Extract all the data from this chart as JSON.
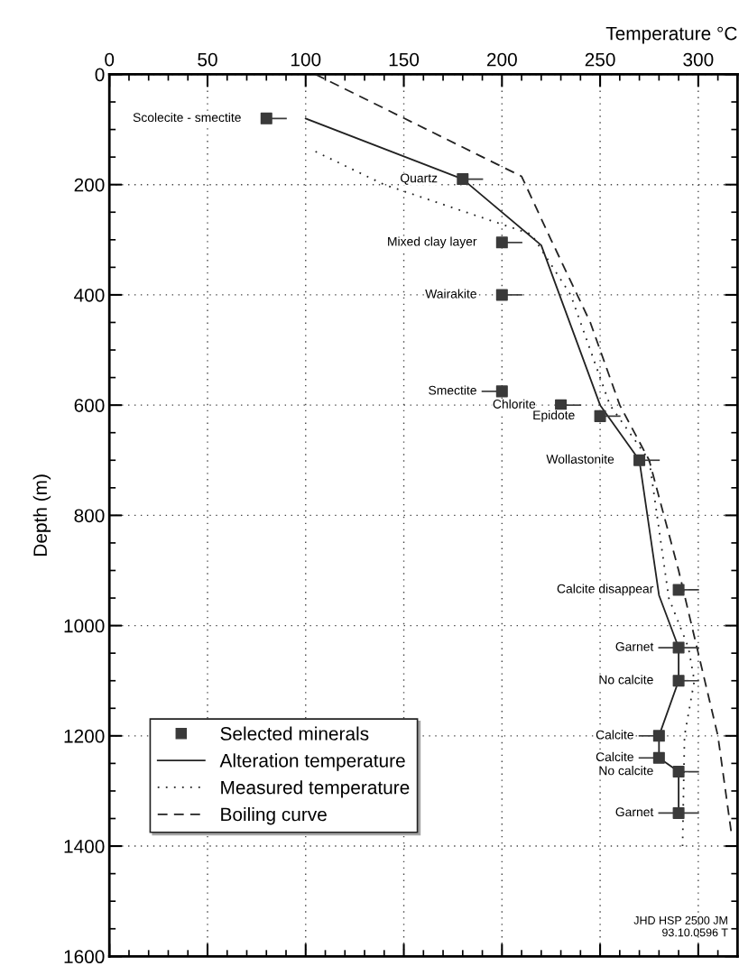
{
  "chart_data": {
    "type": "line",
    "xlabel": "Temperature °C",
    "ylabel": "Depth (m)",
    "xlim": [
      0,
      320
    ],
    "xticks": [
      0,
      50,
      100,
      150,
      200,
      250,
      300
    ],
    "ylim": [
      1600,
      0
    ],
    "yticks": [
      0,
      200,
      400,
      600,
      800,
      1000,
      1200,
      1400,
      1600
    ],
    "grid": true,
    "legend": "bottom left",
    "series": [
      {
        "name": "Selected minerals",
        "type": "scatter",
        "marker": "square",
        "color": "#3a3a3a",
        "x": [
          80,
          180,
          200,
          200,
          200,
          230,
          250,
          270,
          290,
          290,
          290,
          280,
          280,
          290,
          290
        ],
        "values": [
          80,
          190,
          305,
          400,
          575,
          600,
          620,
          700,
          935,
          1040,
          1100,
          1200,
          1240,
          1265,
          1340
        ],
        "xerrors": [
          [
            80,
            90
          ],
          [
            180,
            190
          ],
          [
            200,
            210
          ],
          [
            200,
            210
          ],
          [
            190,
            200
          ],
          [
            230,
            240
          ],
          [
            250,
            260
          ],
          [
            270,
            280
          ],
          [
            290,
            300
          ],
          [
            280,
            300
          ],
          [
            290,
            300
          ],
          [
            270,
            280
          ],
          [
            270,
            280
          ],
          [
            290,
            300
          ],
          [
            280,
            300
          ]
        ]
      },
      {
        "name": "Alteration temperature",
        "line_style": "solid",
        "color": "#222222",
        "x": [
          100,
          180,
          220,
          250,
          270,
          280,
          290,
          290,
          280,
          280,
          290,
          290
        ],
        "values": [
          80,
          190,
          310,
          600,
          700,
          945,
          1040,
          1100,
          1200,
          1240,
          1265,
          1340
        ]
      },
      {
        "name": "Measured temperature",
        "line_style": "dotted",
        "color": "#222222",
        "x": [
          105,
          140,
          215,
          235,
          255,
          275,
          285,
          295,
          298,
          293,
          292
        ],
        "values": [
          140,
          200,
          290,
          400,
          600,
          700,
          950,
          1040,
          1100,
          1200,
          1400
        ]
      },
      {
        "name": "Boiling curve",
        "line_style": "dashed",
        "color": "#222222",
        "x": [
          105,
          210,
          225,
          245,
          260,
          275,
          290,
          300,
          310,
          317
        ],
        "values": [
          0,
          185,
          300,
          450,
          600,
          700,
          900,
          1050,
          1200,
          1380
        ]
      }
    ],
    "annotations": [
      {
        "text": "Scolecite - smectite",
        "x": 80,
        "y": 80
      },
      {
        "text": "Quartz",
        "x": 180,
        "y": 190
      },
      {
        "text": "Mixed clay layer",
        "x": 200,
        "y": 305
      },
      {
        "text": "Wairakite",
        "x": 200,
        "y": 400
      },
      {
        "text": "Smectite",
        "x": 200,
        "y": 575
      },
      {
        "text": "Chlorite",
        "x": 230,
        "y": 600
      },
      {
        "text": "Epidote",
        "x": 250,
        "y": 620
      },
      {
        "text": "Wollastonite",
        "x": 270,
        "y": 700
      },
      {
        "text": "Calcite disappear",
        "x": 290,
        "y": 935
      },
      {
        "text": "Garnet",
        "x": 290,
        "y": 1040
      },
      {
        "text": "No calcite",
        "x": 290,
        "y": 1100
      },
      {
        "text": "Calcite",
        "x": 280,
        "y": 1200
      },
      {
        "text": "Calcite",
        "x": 280,
        "y": 1240
      },
      {
        "text": "No calcite",
        "x": 290,
        "y": 1265
      },
      {
        "text": "Garnet",
        "x": 290,
        "y": 1340
      },
      "JHD HSP 2500 JM\n93.10.0596 T"
    ]
  }
}
